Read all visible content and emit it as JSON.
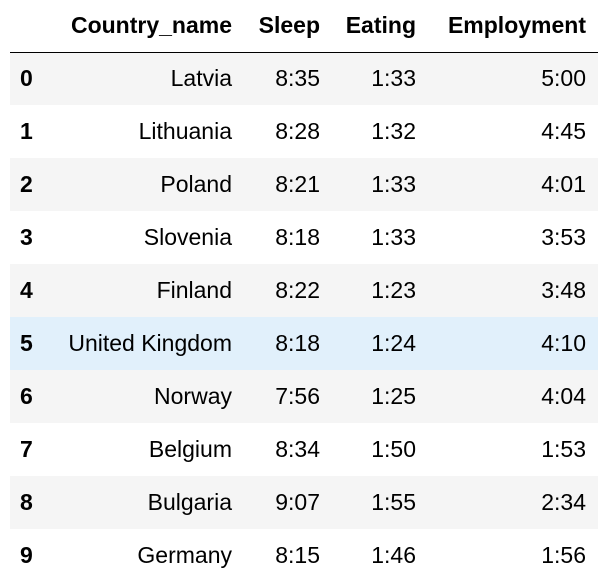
{
  "table": {
    "index_header": "",
    "columns": [
      "Country_name",
      "Sleep",
      "Eating",
      "Employment"
    ],
    "rows": [
      {
        "index": "0",
        "Country_name": "Latvia",
        "Sleep": "8:35",
        "Eating": "1:33",
        "Employment": "5:00"
      },
      {
        "index": "1",
        "Country_name": "Lithuania",
        "Sleep": "8:28",
        "Eating": "1:32",
        "Employment": "4:45"
      },
      {
        "index": "2",
        "Country_name": "Poland",
        "Sleep": "8:21",
        "Eating": "1:33",
        "Employment": "4:01"
      },
      {
        "index": "3",
        "Country_name": "Slovenia",
        "Sleep": "8:18",
        "Eating": "1:33",
        "Employment": "3:53"
      },
      {
        "index": "4",
        "Country_name": "Finland",
        "Sleep": "8:22",
        "Eating": "1:23",
        "Employment": "3:48"
      },
      {
        "index": "5",
        "Country_name": "United Kingdom",
        "Sleep": "8:18",
        "Eating": "1:24",
        "Employment": "4:10"
      },
      {
        "index": "6",
        "Country_name": "Norway",
        "Sleep": "7:56",
        "Eating": "1:25",
        "Employment": "4:04"
      },
      {
        "index": "7",
        "Country_name": "Belgium",
        "Sleep": "8:34",
        "Eating": "1:50",
        "Employment": "1:53"
      },
      {
        "index": "8",
        "Country_name": "Bulgaria",
        "Sleep": "9:07",
        "Eating": "1:55",
        "Employment": "2:34"
      },
      {
        "index": "9",
        "Country_name": "Germany",
        "Sleep": "8:15",
        "Eating": "1:46",
        "Employment": "1:56"
      }
    ],
    "highlighted_row": 5
  },
  "colors": {
    "stripe": "#f5f5f5",
    "highlight": "#e1f0fb",
    "header_rule": "#000000"
  }
}
